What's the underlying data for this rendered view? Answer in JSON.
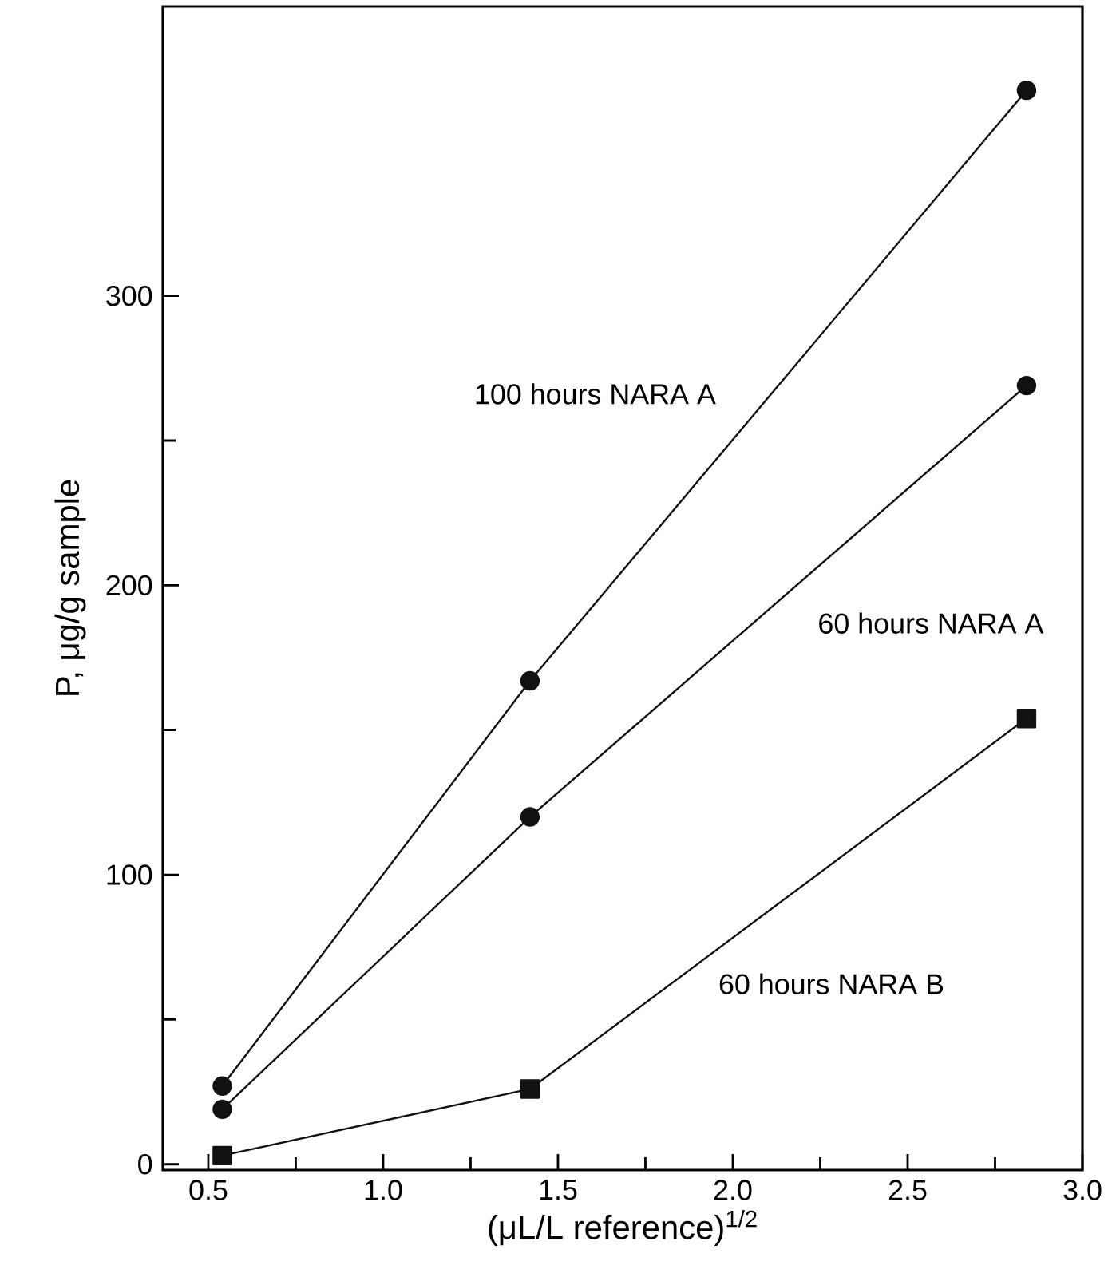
{
  "chart_data": {
    "type": "line",
    "xlabel": "(μL/L reference)$^{1/2}$",
    "ylabel": "P, μg/g sample",
    "xlim": [
      0.37,
      3.0
    ],
    "ylim": [
      -2,
      400
    ],
    "xticks": [
      {
        "value": 0.5,
        "label": "0.5"
      },
      {
        "value": 1.0,
        "label": "1.0"
      },
      {
        "value": 1.5,
        "label": "1.5"
      },
      {
        "value": 2.0,
        "label": "2.0"
      },
      {
        "value": 2.5,
        "label": "2.5"
      },
      {
        "value": 3.0,
        "label": "3.0"
      }
    ],
    "yticks": [
      0,
      100,
      200,
      300
    ],
    "x": [
      0.54,
      1.42,
      2.84
    ],
    "series": [
      {
        "name": "100 hours NARA A",
        "color": "#111111",
        "marker": "circle",
        "values": [
          27,
          167,
          371
        ]
      },
      {
        "name": "60 hours NARA A",
        "color": "#111111",
        "marker": "circle",
        "values": [
          19,
          120,
          269
        ]
      },
      {
        "name": "60 hours NARA B",
        "color": "#111111",
        "marker": "square",
        "values": [
          3,
          26,
          154
        ]
      }
    ]
  }
}
